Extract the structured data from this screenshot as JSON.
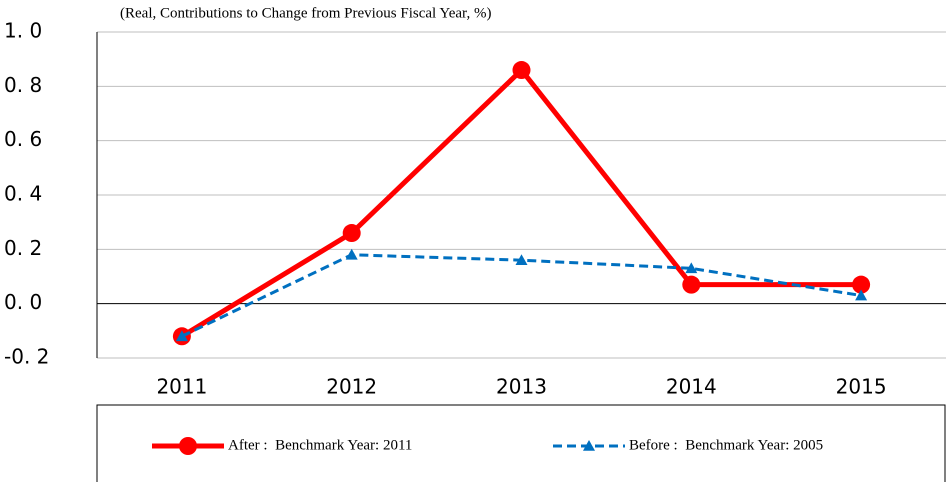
{
  "chart_data": {
    "type": "line",
    "subtitle": "(Real, Contributions to Change from Previous Fiscal Year, %)",
    "categories": [
      "2011",
      "2012",
      "2013",
      "2014",
      "2015"
    ],
    "series": [
      {
        "name": "After :  Benchmark Year: 2011",
        "color": "#ff0000",
        "marker": "circle",
        "dash": "solid",
        "values": [
          -0.12,
          0.26,
          0.86,
          0.07,
          0.07
        ]
      },
      {
        "name": "Before :  Benchmark Year: 2005",
        "color": "#0070c0",
        "marker": "triangle",
        "dash": "dashed",
        "values": [
          -0.12,
          0.18,
          0.16,
          0.13,
          0.03
        ]
      }
    ],
    "ylim": [
      -0.2,
      1.0
    ],
    "yticks": [
      {
        "value": -0.2,
        "label": "-0. 2"
      },
      {
        "value": 0.0,
        "label": "0. 0"
      },
      {
        "value": 0.2,
        "label": "0. 2"
      },
      {
        "value": 0.4,
        "label": "0. 4"
      },
      {
        "value": 0.6,
        "label": "0. 6"
      },
      {
        "value": 0.8,
        "label": "0. 8"
      },
      {
        "value": 1.0,
        "label": "1. 0"
      }
    ],
    "grid": true
  }
}
